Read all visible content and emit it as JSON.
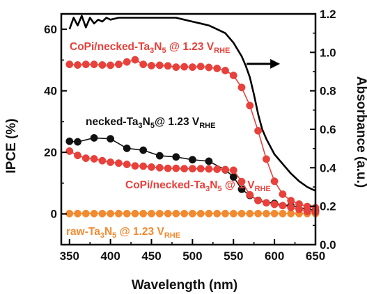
{
  "chart_data": {
    "type": "line",
    "xlabel": "Wavelength (nm)",
    "ylabel": "IPCE (%)",
    "y2label": "Absorbance (a.u.)",
    "xlim": [
      340,
      650
    ],
    "ylim": [
      -10,
      65
    ],
    "y2lim": [
      0,
      1.2
    ],
    "xticks": [
      350,
      400,
      450,
      500,
      550,
      600,
      650
    ],
    "yticks": [
      0,
      20,
      40,
      60
    ],
    "y2ticks": [
      0.0,
      0.2,
      0.4,
      0.6,
      0.8,
      1.0,
      1.2
    ],
    "grid": false,
    "legend": "inline labels",
    "series": [
      {
        "name": "CoPi/necked-Ta3N5 @ 1.23 VRHE",
        "label": {
          "main": "CoPi/necked-Ta",
          "sub1": "3",
          "mid": "N",
          "sub2": "5",
          "tail": " @ 1.23 V",
          "sub3": "RHE"
        },
        "color": "#e8413b",
        "marker": "circle",
        "axis": "left",
        "x": [
          350,
          360,
          370,
          380,
          390,
          400,
          410,
          420,
          430,
          440,
          450,
          460,
          470,
          480,
          490,
          500,
          510,
          520,
          530,
          540,
          550,
          560,
          570,
          580,
          590,
          600,
          610,
          620,
          630,
          640,
          650
        ],
        "y": [
          48.6,
          48.4,
          48.6,
          48.6,
          48.4,
          48.3,
          48.6,
          49.4,
          50.1,
          48.6,
          48.2,
          48.3,
          48.1,
          47.7,
          47.8,
          47.7,
          47.9,
          47.6,
          47.3,
          46.6,
          45.0,
          41.1,
          35.2,
          27.0,
          17.8,
          10.6,
          6.4,
          4.3,
          3.2,
          2.4,
          2.0
        ]
      },
      {
        "name": "necked-Ta3N5@ 1.23 VRHE",
        "label": {
          "main": "necked-Ta",
          "sub1": "3",
          "mid": "N",
          "sub2": "5",
          "tail": "@ 1.23 V",
          "sub3": "RHE"
        },
        "color": "#111111",
        "marker": "circle",
        "axis": "left",
        "x": [
          350,
          360,
          380,
          400,
          420,
          440,
          460,
          480,
          500,
          520,
          540,
          550,
          560,
          570,
          580,
          600,
          620,
          640,
          650
        ],
        "y": [
          23.6,
          23.4,
          24.7,
          24.4,
          21.3,
          20.7,
          18.9,
          18.5,
          17.6,
          17.1,
          14.3,
          12.0,
          8.0,
          6.0,
          4.4,
          3.4,
          2.6,
          1.6,
          1.1
        ]
      },
      {
        "name": "CoPi/necked-Ta3N5 @ 1 VRHE",
        "label": {
          "main": "CoPi/necked-Ta",
          "sub1": "3",
          "mid": "N",
          "sub2": "5",
          "tail": " @ 1 V",
          "sub3": "RHE"
        },
        "color": "#e8413b",
        "marker": "circle",
        "axis": "left",
        "x": [
          350,
          360,
          370,
          380,
          390,
          400,
          410,
          420,
          430,
          440,
          450,
          460,
          470,
          480,
          490,
          500,
          510,
          520,
          530,
          540,
          550,
          560,
          570,
          580,
          590,
          600,
          610,
          620,
          630,
          640,
          650
        ],
        "y": [
          20.4,
          19.0,
          18.1,
          17.9,
          17.3,
          16.8,
          16.5,
          16.1,
          15.6,
          15.5,
          15.2,
          15.0,
          14.8,
          14.8,
          14.7,
          14.7,
          14.7,
          14.6,
          14.5,
          14.4,
          14.2,
          10.5,
          6.2,
          4.3,
          3.6,
          3.1,
          2.7,
          2.1,
          1.5,
          0.8,
          0.6
        ]
      },
      {
        "name": "raw-Ta3N5 @ 1.23 VRHE",
        "label": {
          "main": "raw-Ta",
          "sub1": "3",
          "mid": "N",
          "sub2": "5",
          "tail": " @ 1.23 V",
          "sub3": "RHE"
        },
        "color": "#f28a30",
        "marker": "circle",
        "axis": "left",
        "x": [
          350,
          360,
          370,
          380,
          390,
          400,
          410,
          420,
          430,
          440,
          450,
          460,
          470,
          480,
          490,
          500,
          510,
          520,
          530,
          540,
          550,
          560,
          570,
          580,
          590,
          600,
          610,
          620,
          630,
          640,
          650
        ],
        "y": [
          0.1,
          0.1,
          0.1,
          0.1,
          0.1,
          0.1,
          0.1,
          0.1,
          0.1,
          0.1,
          0.1,
          0.1,
          0.1,
          0.1,
          0.1,
          0.1,
          0.1,
          0.1,
          0.1,
          0.1,
          0.1,
          0.1,
          0.1,
          0.1,
          0.1,
          0.1,
          0.1,
          0.1,
          0.1,
          0.1,
          0.1
        ]
      },
      {
        "name": "Absorbance",
        "color": "#000000",
        "marker": "none",
        "axis": "right",
        "x": [
          350,
          355,
          360,
          365,
          370,
          375,
          380,
          385,
          390,
          395,
          400,
          410,
          420,
          430,
          440,
          450,
          460,
          470,
          480,
          490,
          500,
          510,
          520,
          530,
          540,
          550,
          560,
          565,
          570,
          575,
          580,
          585,
          590,
          600,
          610,
          620,
          630,
          640,
          645,
          650
        ],
        "y": [
          1.12,
          1.18,
          1.14,
          1.19,
          1.13,
          1.18,
          1.15,
          1.17,
          1.16,
          1.18,
          1.17,
          1.18,
          1.18,
          1.18,
          1.18,
          1.18,
          1.18,
          1.18,
          1.18,
          1.17,
          1.16,
          1.15,
          1.14,
          1.12,
          1.1,
          1.05,
          0.98,
          0.93,
          0.87,
          0.78,
          0.68,
          0.6,
          0.55,
          0.47,
          0.42,
          0.37,
          0.33,
          0.3,
          0.29,
          0.28
        ]
      }
    ],
    "annotations": [
      {
        "type": "arrow",
        "direction": "right",
        "target_axis": "right",
        "x": 583,
        "y2": 0.94
      }
    ]
  },
  "colors": {
    "red": "#e8413b",
    "black": "#111111",
    "orange": "#f28a30"
  }
}
